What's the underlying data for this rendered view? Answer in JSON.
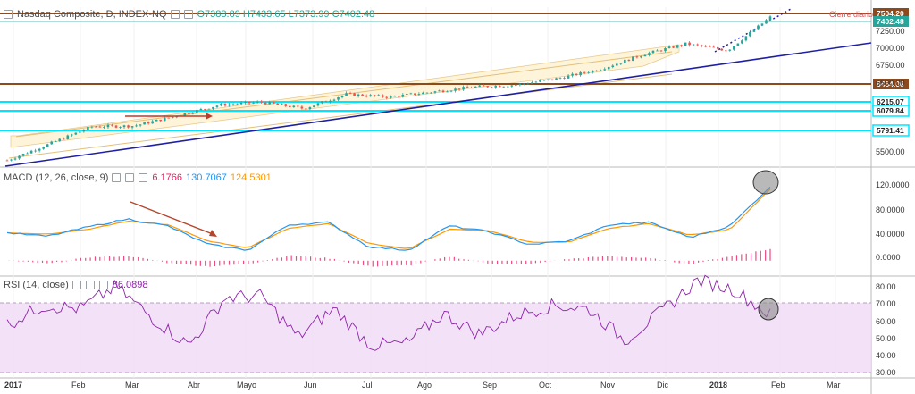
{
  "colors": {
    "up": "#26a69a",
    "down": "#ef5350",
    "macd": "#2196f3",
    "signal": "#ff9800",
    "hist": "#e91e63",
    "rsi": "#8e24aa",
    "resistance": "#8d4a1c",
    "support_blue": "#00e5ff",
    "trend": "#1f1fa3",
    "channel_fill": "#fdf3d6",
    "rsi_band": "#f1dcf7"
  },
  "price_legend": {
    "symbol": "Nasdaq Composite, D, INDEX-NQ",
    "ohlc": "O7388.89  H7433.65  L7373.99  C7402.48"
  },
  "macd_legend": {
    "label": "MACD (12, 26, close, 9)",
    "v1": "6.1766",
    "v2": "130.7067",
    "v3": "124.5301"
  },
  "rsi_legend": {
    "label": "RSI (14, close)",
    "value": "86.0898"
  },
  "annotation": {
    "closing_label": "Cierre diario"
  },
  "chart_data": [
    {
      "type": "candlestick",
      "x_axis": [
        "2017",
        "Feb",
        "Mar",
        "Abr",
        "Mayo",
        "Jun",
        "Jul",
        "Ago",
        "Sep",
        "Oct",
        "Nov",
        "Dic",
        "2018",
        "Feb",
        "Mar"
      ],
      "y_ticks": [
        7250.0,
        7000.0,
        6750.0,
        6500.0,
        5500.0
      ],
      "price_labels": [
        "7504.20",
        "7402.48",
        "6464.06",
        "6215.07",
        "6079.84",
        "5791.41"
      ],
      "levels": [
        {
          "value": 7504.2,
          "color": "resistance"
        },
        {
          "value": 7402.48,
          "color": "up"
        },
        {
          "value": 6464.06,
          "color": "resistance"
        },
        {
          "value": 6215.07,
          "color": "support_blue"
        },
        {
          "value": 6079.84,
          "color": "support_blue"
        },
        {
          "value": 5791.41,
          "color": "support_blue"
        }
      ],
      "series": [
        {
          "name": "Nasdaq Composite",
          "values_approx": [
            5430,
            5660,
            5900,
            5910,
            6050,
            6200,
            6240,
            6150,
            6350,
            6310,
            6380,
            6450,
            6480,
            6570,
            6700,
            6900,
            7050,
            6960,
            7420
          ]
        }
      ]
    },
    {
      "type": "line",
      "y_ticks": [
        120.0,
        80.0,
        40.0,
        0.0
      ],
      "series": [
        {
          "name": "MACD",
          "values_approx": [
            48,
            42,
            58,
            72,
            60,
            28,
            18,
            62,
            66,
            24,
            18,
            60,
            50,
            28,
            34,
            62,
            66,
            40,
            60,
            128
          ]
        },
        {
          "name": "Signal",
          "values_approx": [
            48,
            46,
            54,
            68,
            62,
            34,
            22,
            56,
            64,
            30,
            20,
            54,
            52,
            32,
            32,
            56,
            64,
            44,
            54,
            124
          ]
        },
        {
          "name": "Histogram",
          "values_approx": [
            0,
            -5,
            6,
            8,
            -4,
            -10,
            -5,
            9,
            4,
            -10,
            -8,
            7,
            -5,
            -6,
            3,
            8,
            4,
            -6,
            8,
            20
          ]
        }
      ]
    },
    {
      "type": "line",
      "y_ticks": [
        80.0,
        70.0,
        60.0,
        50.0,
        40.0,
        30.0
      ],
      "band": [
        30,
        70
      ],
      "series": [
        {
          "name": "RSI",
          "values_approx": [
            58,
            70,
            68,
            82,
            62,
            45,
            75,
            76,
            50,
            68,
            45,
            46,
            65,
            52,
            64,
            70,
            68,
            48,
            66,
            86,
            80,
            64
          ]
        }
      ]
    }
  ]
}
